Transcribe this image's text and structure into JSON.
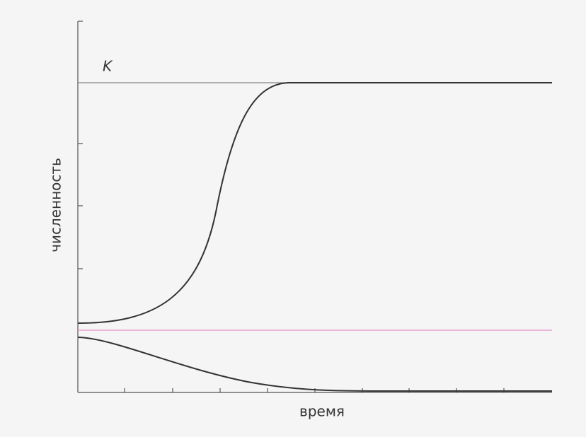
{
  "k_label": "K",
  "y_axis_label": "численность",
  "x_axis_label": "время"
}
